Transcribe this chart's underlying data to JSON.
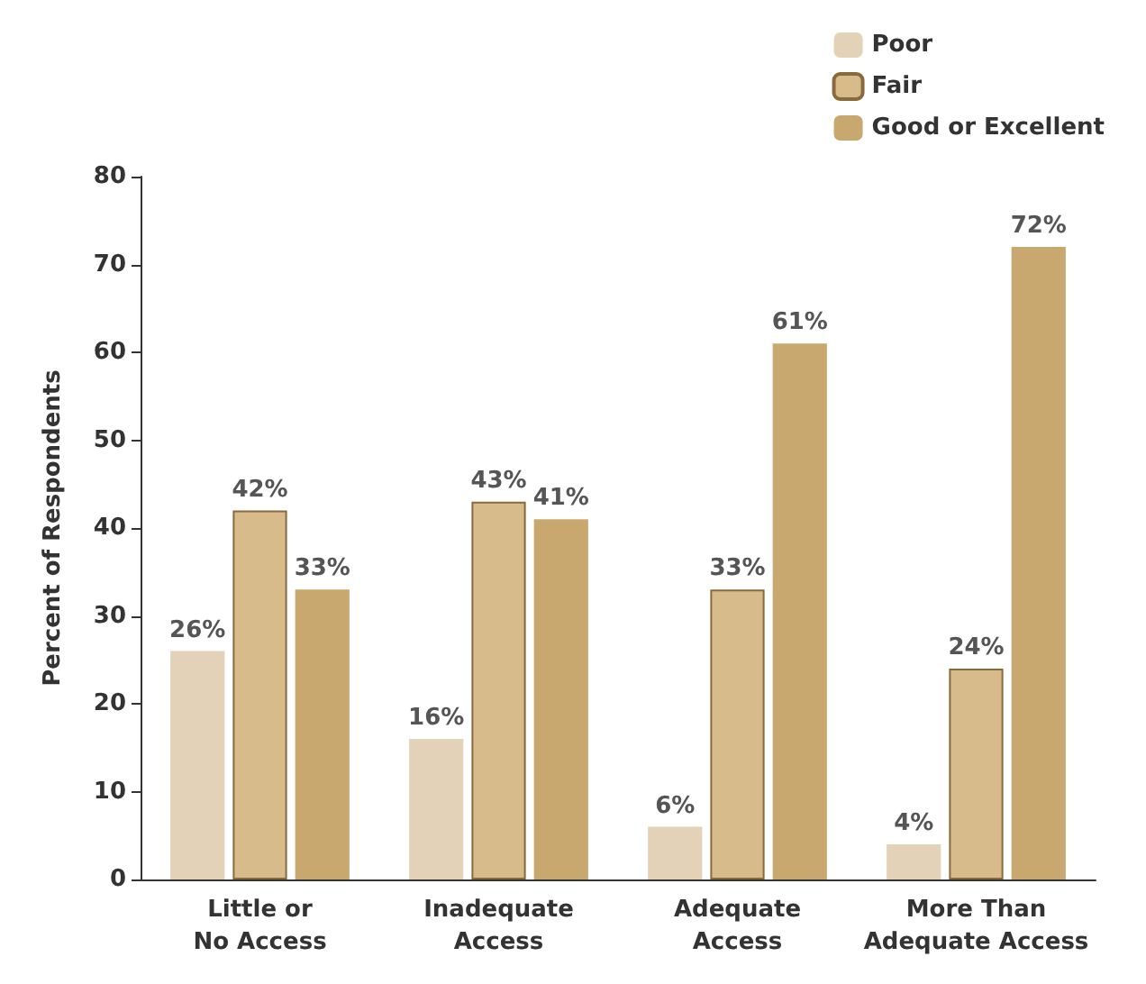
{
  "chart_data": {
    "type": "bar",
    "ylabel": "Percent of Respondents",
    "categories": [
      "Little or\nNo Access",
      "Inadequate\nAccess",
      "Adequate\nAccess",
      "More Than\nAdequate Access"
    ],
    "series": [
      {
        "name": "Poor",
        "color": "#e3d2b8",
        "values": [
          26,
          16,
          6,
          4
        ],
        "value_labels": [
          "26%",
          "16%",
          "6%",
          "4%"
        ]
      },
      {
        "name": "Fair",
        "color": "#d8bb8a",
        "values": [
          42,
          43,
          33,
          24
        ],
        "value_labels": [
          "42%",
          "43%",
          "33%",
          "24%"
        ]
      },
      {
        "name": "Good or Excellent",
        "color": "#c8a86f",
        "values": [
          33,
          41,
          61,
          72
        ],
        "value_labels": [
          "33%",
          "41%",
          "61%",
          "72%"
        ]
      }
    ],
    "ylim": [
      0,
      80
    ],
    "yticks": [
      0,
      10,
      20,
      30,
      40,
      50,
      60,
      70,
      80
    ],
    "grid": false,
    "legend": "top right"
  }
}
